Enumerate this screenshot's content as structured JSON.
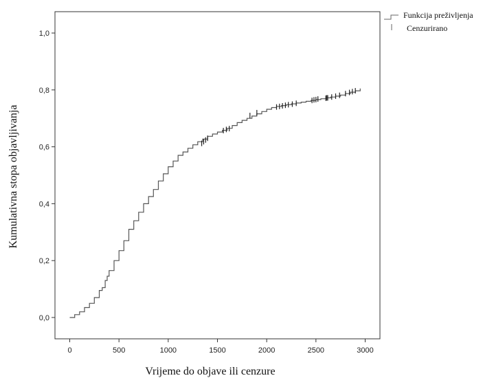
{
  "chart_data": {
    "type": "line",
    "xlabel": "Vrijeme do objave ili cenzure",
    "ylabel": "Kumulativna stopa objavljivanja",
    "xlim": [
      -150,
      3150
    ],
    "ylim": [
      -0.075,
      1.075
    ],
    "x_ticks": [
      0,
      500,
      1000,
      1500,
      2000,
      2500,
      3000
    ],
    "y_ticks": [
      0.0,
      0.2,
      0.4,
      0.6,
      0.8,
      1.0
    ],
    "x_tick_labels": [
      "0",
      "500",
      "1000",
      "1500",
      "2000",
      "2500",
      "3000"
    ],
    "y_tick_labels": [
      "0,0",
      "0,2",
      "0,4",
      "0,6",
      "0,8",
      "1,0"
    ],
    "grid": false,
    "legend_position": "top-right, outside plot",
    "legend": {
      "line_label": "Funkcija preživljenja",
      "censor_label": "Cenzurirano"
    },
    "series": [
      {
        "name": "Funkcija preživljenja",
        "x": [
          0,
          50,
          100,
          150,
          200,
          250,
          300,
          330,
          360,
          380,
          400,
          450,
          500,
          550,
          600,
          650,
          700,
          750,
          800,
          850,
          900,
          950,
          1000,
          1050,
          1100,
          1150,
          1200,
          1250,
          1300,
          1350,
          1400,
          1450,
          1500,
          1550,
          1600,
          1650,
          1700,
          1750,
          1800,
          1850,
          1900,
          1950,
          2000,
          2050,
          2100,
          2150,
          2200,
          2250,
          2300,
          2350,
          2400,
          2450,
          2500,
          2550,
          2600,
          2650,
          2700,
          2750,
          2800,
          2850,
          2900,
          2950
        ],
        "y": [
          0.0,
          0.01,
          0.02,
          0.035,
          0.05,
          0.07,
          0.095,
          0.105,
          0.13,
          0.145,
          0.165,
          0.2,
          0.235,
          0.27,
          0.31,
          0.34,
          0.37,
          0.4,
          0.425,
          0.45,
          0.48,
          0.505,
          0.53,
          0.55,
          0.57,
          0.582,
          0.595,
          0.607,
          0.618,
          0.627,
          0.637,
          0.645,
          0.652,
          0.658,
          0.665,
          0.675,
          0.685,
          0.693,
          0.7,
          0.708,
          0.716,
          0.724,
          0.732,
          0.738,
          0.742,
          0.745,
          0.748,
          0.751,
          0.754,
          0.757,
          0.76,
          0.763,
          0.766,
          0.769,
          0.772,
          0.775,
          0.778,
          0.782,
          0.787,
          0.792,
          0.797,
          0.805
        ]
      }
    ],
    "censored": {
      "x": [
        1340,
        1360,
        1380,
        1400,
        1560,
        1590,
        1620,
        1830,
        1900,
        2100,
        2130,
        2160,
        2190,
        2220,
        2260,
        2300,
        2460,
        2480,
        2500,
        2520,
        2600,
        2610,
        2620,
        2660,
        2700,
        2740,
        2800,
        2840,
        2870,
        2900
      ],
      "y": [
        0.612,
        0.618,
        0.624,
        0.63,
        0.657,
        0.661,
        0.664,
        0.71,
        0.72,
        0.74,
        0.742,
        0.744,
        0.746,
        0.748,
        0.75,
        0.753,
        0.763,
        0.765,
        0.766,
        0.768,
        0.771,
        0.772,
        0.772,
        0.775,
        0.778,
        0.781,
        0.787,
        0.791,
        0.794,
        0.797
      ]
    },
    "colors": {
      "line": "#555555",
      "censor": "#222222",
      "axis": "#333333"
    }
  }
}
